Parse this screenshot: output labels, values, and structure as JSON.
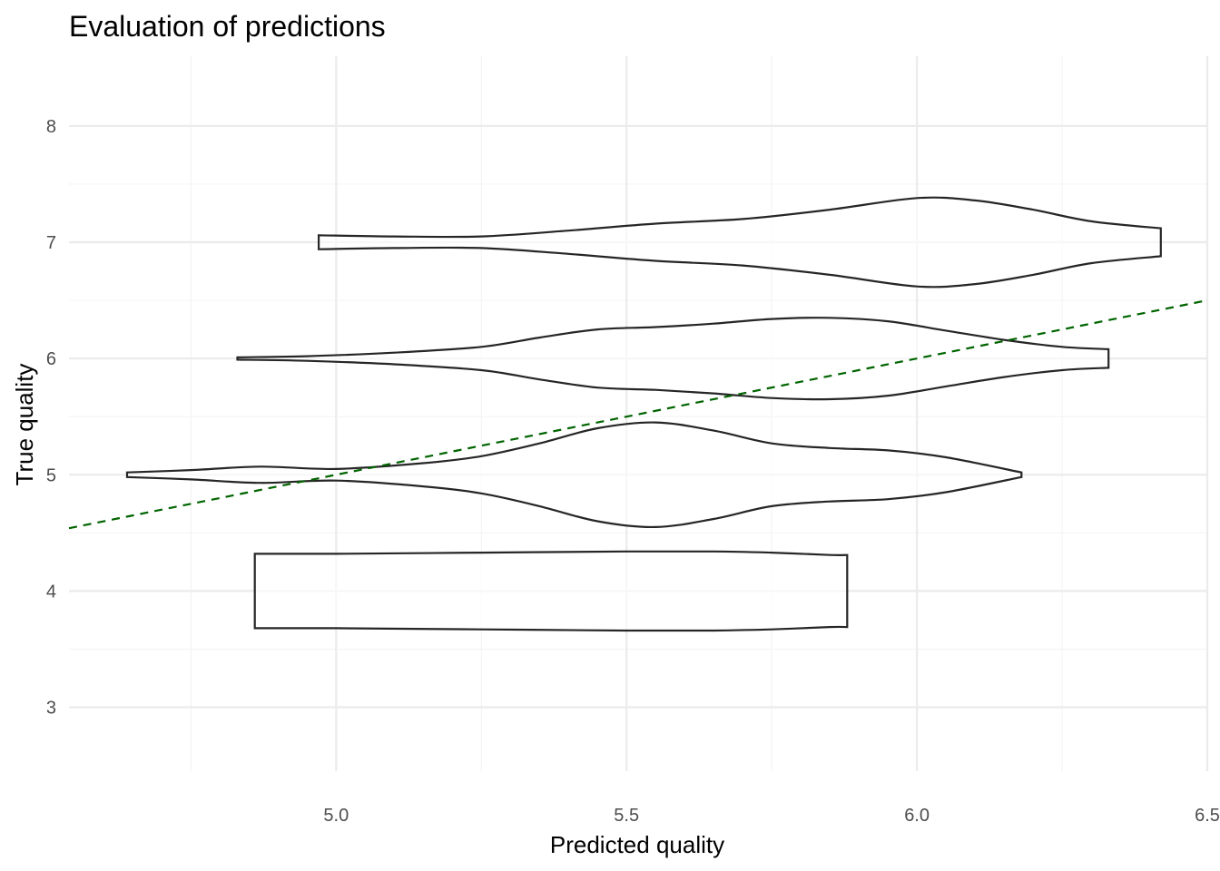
{
  "chart_data": {
    "type": "violin",
    "title": "Evaluation of predictions",
    "xlabel": "Predicted quality",
    "ylabel": "True quality",
    "xlim": [
      4.54,
      6.5
    ],
    "ylim": [
      2.45,
      8.6
    ],
    "x_ticks": [
      "5.0",
      "5.5",
      "6.0",
      "6.5"
    ],
    "y_ticks": [
      "3",
      "4",
      "5",
      "6",
      "7",
      "8"
    ],
    "x_tick_values": [
      5.0,
      5.5,
      6.0,
      6.5
    ],
    "y_tick_values": [
      3,
      4,
      5,
      6,
      7,
      8
    ],
    "x_minor_ticks": [
      4.75,
      5.25,
      5.75,
      6.25
    ],
    "y_minor_ticks": [],
    "grid": true,
    "legend": "none",
    "reference_line": {
      "type": "y = x",
      "style": "dashed",
      "color": "#006400"
    },
    "violins": [
      {
        "group": 4,
        "profile": [
          [
            4.86,
            0.32
          ],
          [
            5.0,
            0.32
          ],
          [
            5.25,
            0.33
          ],
          [
            5.5,
            0.34
          ],
          [
            5.65,
            0.34
          ],
          [
            5.75,
            0.33
          ],
          [
            5.85,
            0.31
          ],
          [
            5.88,
            0.31
          ]
        ]
      },
      {
        "group": 5,
        "profile": [
          [
            4.64,
            0.02
          ],
          [
            4.75,
            0.04
          ],
          [
            4.87,
            0.07
          ],
          [
            5.0,
            0.05
          ],
          [
            5.15,
            0.1
          ],
          [
            5.25,
            0.16
          ],
          [
            5.35,
            0.27
          ],
          [
            5.45,
            0.4
          ],
          [
            5.55,
            0.45
          ],
          [
            5.65,
            0.38
          ],
          [
            5.75,
            0.27
          ],
          [
            5.85,
            0.23
          ],
          [
            5.95,
            0.21
          ],
          [
            6.05,
            0.15
          ],
          [
            6.18,
            0.02
          ]
        ]
      },
      {
        "group": 6,
        "profile": [
          [
            4.83,
            0.01
          ],
          [
            4.95,
            0.02
          ],
          [
            5.1,
            0.05
          ],
          [
            5.25,
            0.1
          ],
          [
            5.35,
            0.18
          ],
          [
            5.45,
            0.25
          ],
          [
            5.55,
            0.27
          ],
          [
            5.65,
            0.3
          ],
          [
            5.75,
            0.34
          ],
          [
            5.85,
            0.35
          ],
          [
            5.95,
            0.32
          ],
          [
            6.05,
            0.24
          ],
          [
            6.15,
            0.16
          ],
          [
            6.25,
            0.1
          ],
          [
            6.33,
            0.08
          ]
        ]
      },
      {
        "group": 7,
        "profile": [
          [
            4.97,
            0.06
          ],
          [
            5.1,
            0.05
          ],
          [
            5.25,
            0.05
          ],
          [
            5.4,
            0.1
          ],
          [
            5.55,
            0.16
          ],
          [
            5.7,
            0.2
          ],
          [
            5.85,
            0.28
          ],
          [
            6.0,
            0.38
          ],
          [
            6.1,
            0.36
          ],
          [
            6.2,
            0.28
          ],
          [
            6.3,
            0.18
          ],
          [
            6.42,
            0.12
          ]
        ]
      }
    ]
  }
}
